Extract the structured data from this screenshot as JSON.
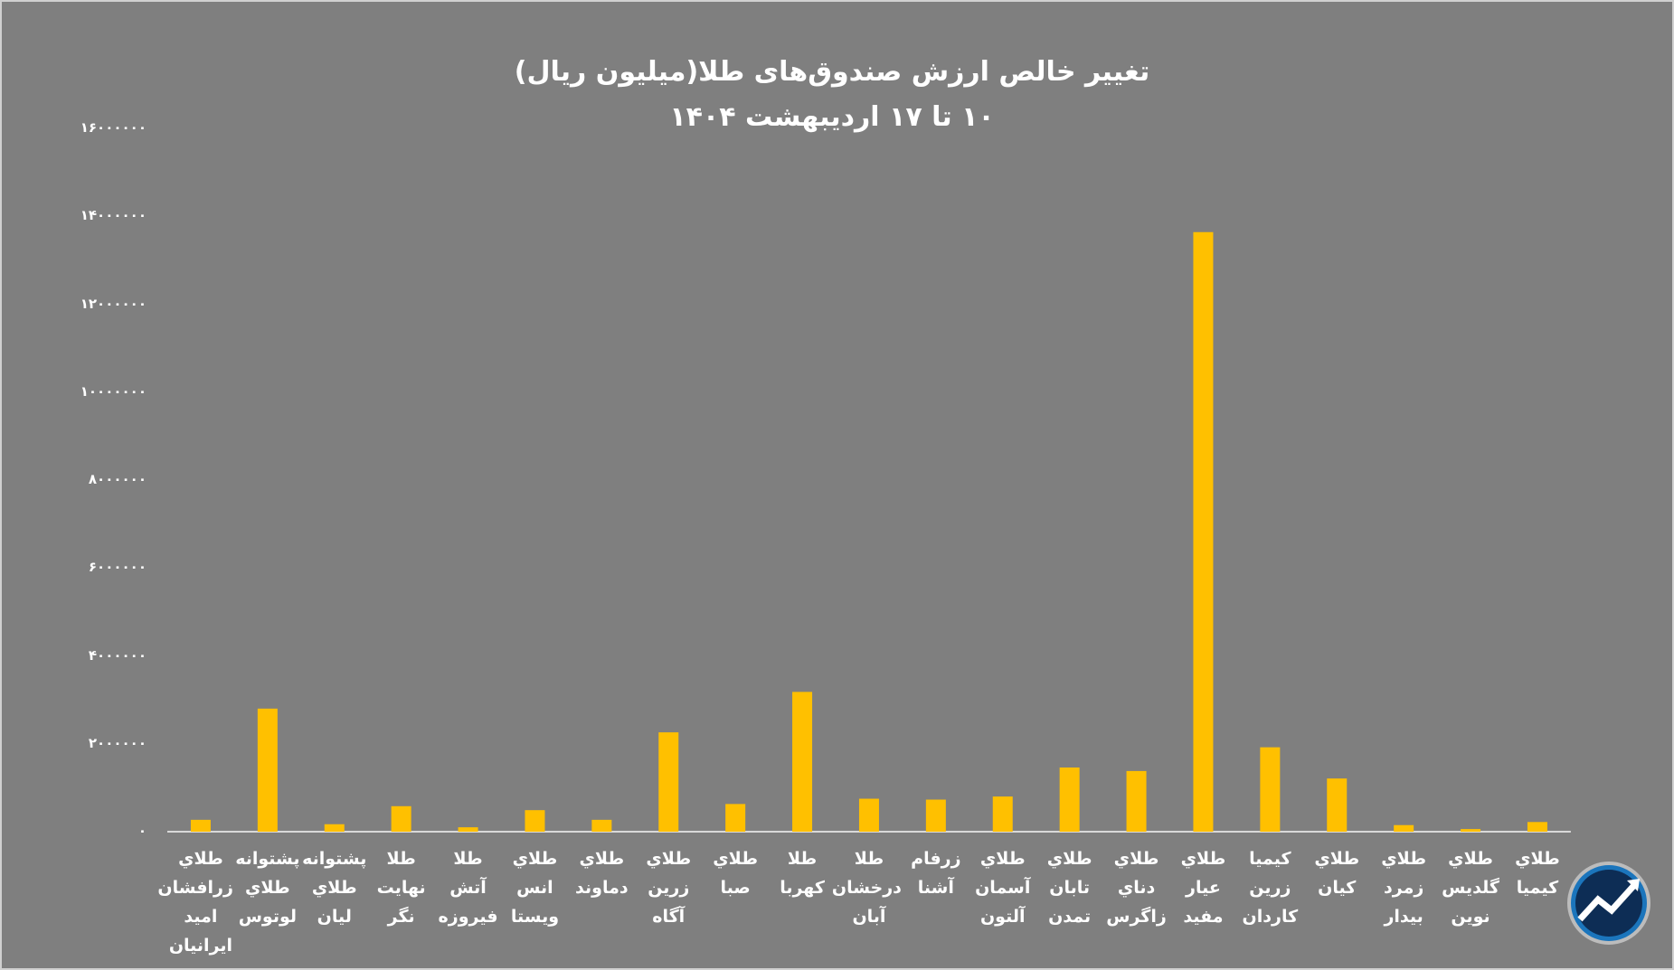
{
  "chart_data": {
    "type": "bar",
    "title": "تغییر خالص ارزش صندوق‌های طلا(میلیون ریال)",
    "subtitle": "۱۰ تا ۱۷ اردیبهشت ۱۴۰۴",
    "categories": [
      "طلاي زرافشان امید ایرانیان",
      "پشتوانه طلاي لوتوس",
      "پشتوانه طلاي لیان",
      "طلا نهایت نگر",
      "طلا آتش فیروزه",
      "طلاي انس ویستا",
      "طلاي دماوند",
      "طلاي زرین آگاه",
      "طلاي صبا",
      "طلا کهربا",
      "طلا درخشان آبان",
      "زرفام آشنا",
      "طلاي آسمان آلتون",
      "طلاي تابان تمدن",
      "طلاي دناي زاگرس",
      "طلاي عیار مفید",
      "کیمیا زرین کاردان",
      "طلاي کیان",
      "طلاي زمرد بیدار",
      "طلاي گلدیس نوین",
      "طلاي کیمیا"
    ],
    "values": [
      270000,
      2800000,
      170000,
      580000,
      100000,
      490000,
      270000,
      2260000,
      630000,
      3180000,
      750000,
      730000,
      800000,
      1460000,
      1380000,
      13640000,
      1920000,
      1210000,
      150000,
      60000,
      220000
    ],
    "color": "#ffc000",
    "ylim": [
      0,
      16000000
    ],
    "yticks": [
      {
        "value": 0,
        "label": "۰"
      },
      {
        "value": 2000000,
        "label": "۲۰۰۰۰۰۰"
      },
      {
        "value": 4000000,
        "label": "۴۰۰۰۰۰۰"
      },
      {
        "value": 6000000,
        "label": "۶۰۰۰۰۰۰"
      },
      {
        "value": 8000000,
        "label": "۸۰۰۰۰۰۰"
      },
      {
        "value": 10000000,
        "label": "۱۰۰۰۰۰۰۰"
      },
      {
        "value": 12000000,
        "label": "۱۲۰۰۰۰۰۰"
      },
      {
        "value": 14000000,
        "label": "۱۴۰۰۰۰۰۰"
      },
      {
        "value": 16000000,
        "label": "۱۶۰۰۰۰۰۰"
      }
    ],
    "grid": false
  }
}
